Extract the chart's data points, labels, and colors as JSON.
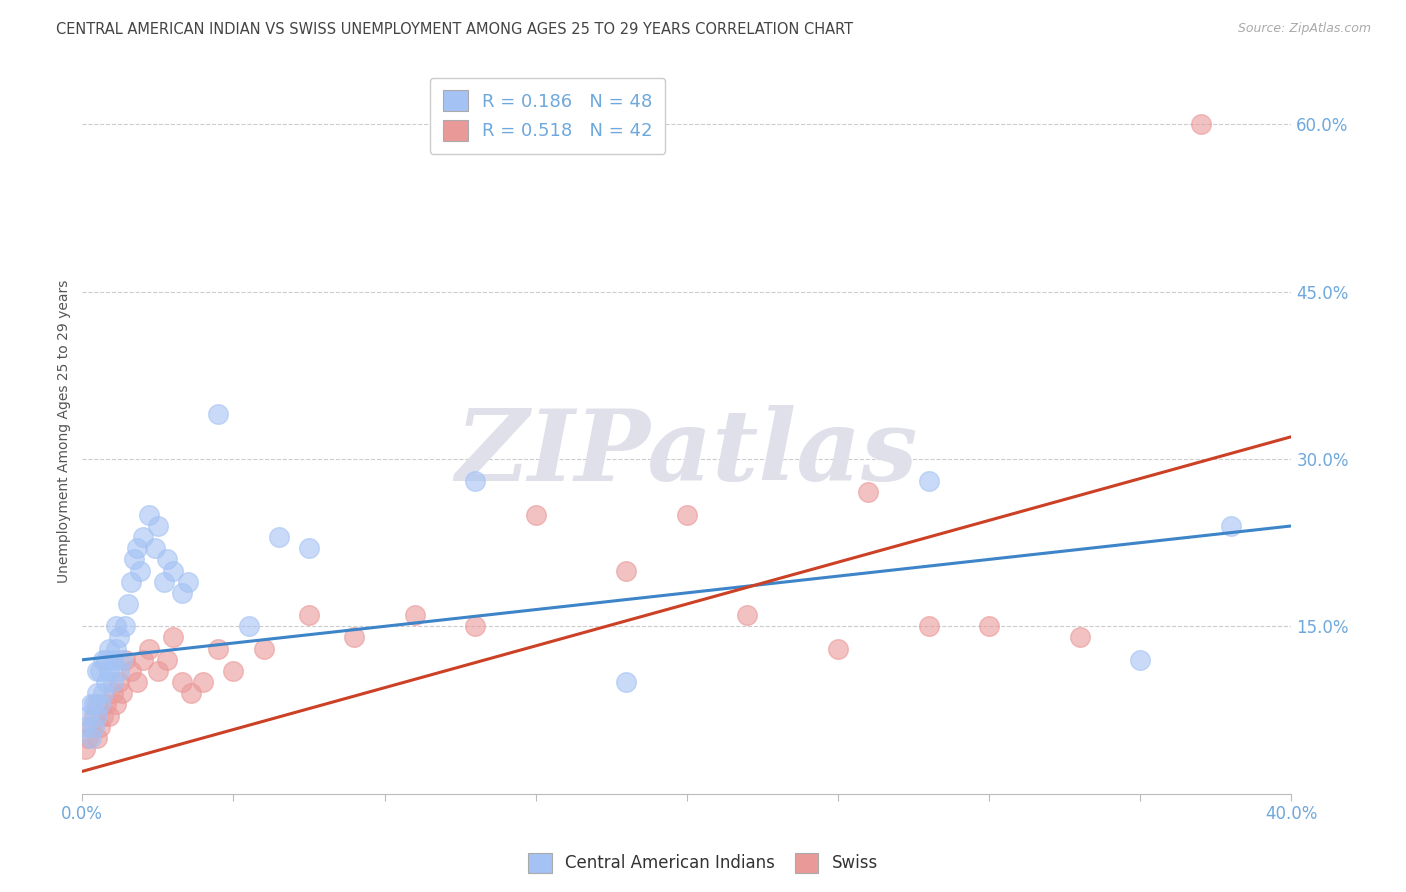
{
  "title": "CENTRAL AMERICAN INDIAN VS SWISS UNEMPLOYMENT AMONG AGES 25 TO 29 YEARS CORRELATION CHART",
  "source": "Source: ZipAtlas.com",
  "ylabel": "Unemployment Among Ages 25 to 29 years",
  "xlim": [
    0.0,
    0.4
  ],
  "ylim": [
    0.0,
    0.65
  ],
  "xticks": [
    0.0,
    0.05,
    0.1,
    0.15,
    0.2,
    0.25,
    0.3,
    0.35,
    0.4
  ],
  "xtick_labels_show": [
    "0.0%",
    "",
    "",
    "",
    "",
    "",
    "",
    "",
    "40.0%"
  ],
  "yticks_right": [
    0.15,
    0.3,
    0.45,
    0.6
  ],
  "ytick_labels_right": [
    "15.0%",
    "30.0%",
    "45.0%",
    "60.0%"
  ],
  "blue_R": 0.186,
  "blue_N": 48,
  "pink_R": 0.518,
  "pink_N": 42,
  "blue_color": "#a4c2f4",
  "pink_color": "#ea9999",
  "blue_line_color": "#3d85c8",
  "pink_line_color": "#cc4125",
  "legend_label_blue": "Central American Indians",
  "legend_label_pink": "Swiss",
  "watermark_text": "ZIPatlas",
  "background_color": "#ffffff",
  "grid_color": "#cccccc",
  "axis_label_color": "#6fa8dc",
  "title_color": "#444444",
  "blue_x": [
    0.001,
    0.002,
    0.003,
    0.003,
    0.004,
    0.004,
    0.005,
    0.005,
    0.005,
    0.006,
    0.006,
    0.007,
    0.007,
    0.008,
    0.008,
    0.009,
    0.009,
    0.01,
    0.01,
    0.011,
    0.011,
    0.012,
    0.012,
    0.013,
    0.014,
    0.015,
    0.016,
    0.017,
    0.018,
    0.019,
    0.02,
    0.022,
    0.024,
    0.025,
    0.027,
    0.028,
    0.03,
    0.033,
    0.035,
    0.045,
    0.055,
    0.065,
    0.075,
    0.13,
    0.18,
    0.28,
    0.35,
    0.38
  ],
  "blue_y": [
    0.06,
    0.07,
    0.05,
    0.08,
    0.06,
    0.08,
    0.07,
    0.09,
    0.11,
    0.08,
    0.11,
    0.09,
    0.12,
    0.1,
    0.12,
    0.11,
    0.13,
    0.1,
    0.12,
    0.13,
    0.15,
    0.11,
    0.14,
    0.12,
    0.15,
    0.17,
    0.19,
    0.21,
    0.22,
    0.2,
    0.23,
    0.25,
    0.22,
    0.24,
    0.19,
    0.21,
    0.2,
    0.18,
    0.19,
    0.34,
    0.15,
    0.23,
    0.22,
    0.28,
    0.1,
    0.28,
    0.12,
    0.24
  ],
  "pink_x": [
    0.001,
    0.002,
    0.003,
    0.004,
    0.005,
    0.005,
    0.006,
    0.007,
    0.008,
    0.009,
    0.01,
    0.011,
    0.012,
    0.013,
    0.014,
    0.016,
    0.018,
    0.02,
    0.022,
    0.025,
    0.028,
    0.03,
    0.033,
    0.036,
    0.04,
    0.045,
    0.05,
    0.06,
    0.075,
    0.09,
    0.11,
    0.13,
    0.15,
    0.18,
    0.2,
    0.22,
    0.25,
    0.26,
    0.28,
    0.3,
    0.33,
    0.37
  ],
  "pink_y": [
    0.04,
    0.05,
    0.06,
    0.07,
    0.05,
    0.08,
    0.06,
    0.07,
    0.08,
    0.07,
    0.09,
    0.08,
    0.1,
    0.09,
    0.12,
    0.11,
    0.1,
    0.12,
    0.13,
    0.11,
    0.12,
    0.14,
    0.1,
    0.09,
    0.1,
    0.13,
    0.11,
    0.13,
    0.16,
    0.14,
    0.16,
    0.15,
    0.25,
    0.2,
    0.25,
    0.16,
    0.13,
    0.27,
    0.15,
    0.15,
    0.14,
    0.6
  ],
  "blue_line_x0": 0.0,
  "blue_line_y0": 0.12,
  "blue_line_x1": 0.4,
  "blue_line_y1": 0.24,
  "pink_line_x0": 0.0,
  "pink_line_y0": 0.02,
  "pink_line_x1": 0.4,
  "pink_line_y1": 0.32
}
